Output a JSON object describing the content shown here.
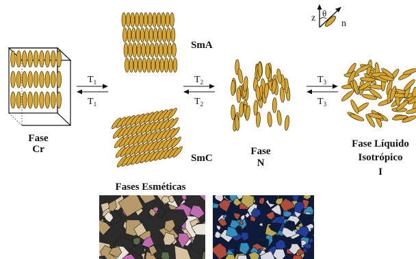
{
  "colors": {
    "molecule_fill": "#d9a72e",
    "molecule_stroke": "#3a2a06",
    "text": "#111111",
    "arrow": "#111111"
  },
  "phases": {
    "crystal": {
      "line1": "Fase",
      "line2": "Cr"
    },
    "smectic_a": {
      "label": "SmA"
    },
    "smectic_c": {
      "label": "SmC"
    },
    "smectic_group": {
      "label": "Fases Esméticas"
    },
    "nematic": {
      "line1": "Fase",
      "line2": "N"
    },
    "isotropic": {
      "line1": "Fase Líquido",
      "line2": "Isotrópico",
      "line3": "I"
    }
  },
  "transitions": [
    {
      "base": "T",
      "sub": "1"
    },
    {
      "base": "T",
      "sub": "2"
    },
    {
      "base": "T",
      "sub": "3"
    }
  ],
  "director_axes": {
    "z": "z",
    "theta": "θ",
    "n": "n"
  },
  "micrographs": [
    {
      "name": "smectic-texture",
      "dominant_colors": [
        "#d8c3a0",
        "#b89a6a",
        "#5b6e4a",
        "#2b2b2b",
        "#c06ab0",
        "#e8e4d8"
      ]
    },
    {
      "name": "nematic-texture",
      "dominant_colors": [
        "#0d1a3a",
        "#1f3ea0",
        "#2f8fc0",
        "#b8a850",
        "#b04a3a",
        "#d8d8e0"
      ]
    }
  ]
}
